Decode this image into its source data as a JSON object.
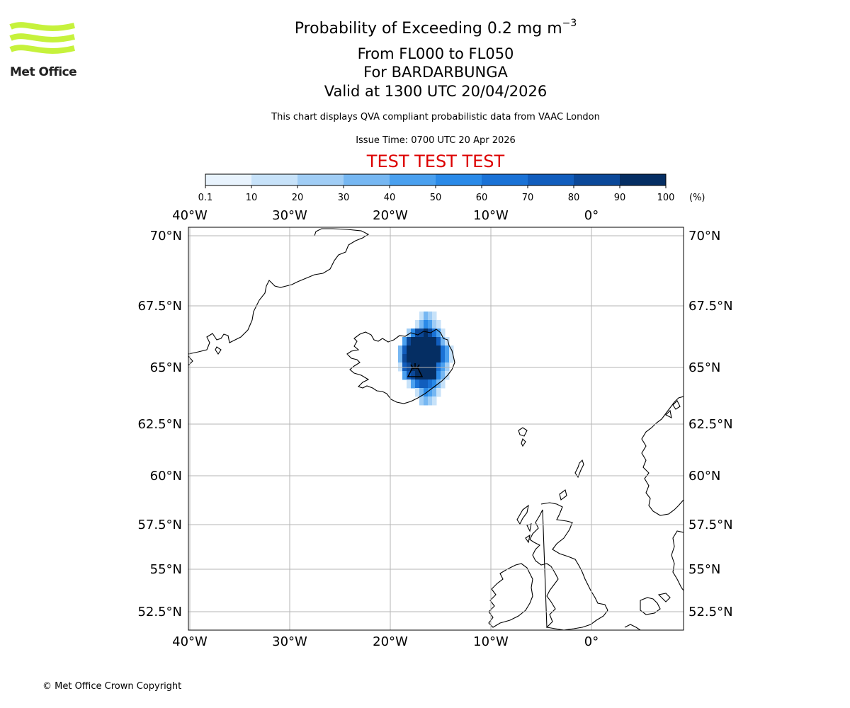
{
  "header": {
    "title_prefix": "Probability of Exceeding 0.2 mg m",
    "title_exponent": "−3",
    "flight_levels": "From FL000 to FL050",
    "volcano": "For BARDARBUNGA",
    "valid_time": "Valid at 1300 UTC 20/04/2026",
    "subtitle": "This chart displays QVA compliant probabilistic data from VAAC London",
    "issue_time": "Issue Time: 0700 UTC 20 Apr 2026",
    "test_banner": "TEST TEST TEST"
  },
  "logo": {
    "text": "Met Office",
    "color": "#c6f23c"
  },
  "colorbar": {
    "ticks": [
      "0.1",
      "10",
      "20",
      "30",
      "40",
      "50",
      "60",
      "70",
      "80",
      "90",
      "100"
    ],
    "unit": "(%)",
    "colors": [
      "#e8f3fd",
      "#c7e2f9",
      "#a0cdf5",
      "#76b7f2",
      "#4aa0ef",
      "#2a8ae8",
      "#1a72d6",
      "#115dbd",
      "#0b4899",
      "#052e63"
    ]
  },
  "map": {
    "lon_labels": [
      "40°W",
      "30°W",
      "20°W",
      "10°W",
      "0°"
    ],
    "lat_labels": [
      "70°N",
      "67.5°N",
      "65°N",
      "62.5°N",
      "60°N",
      "57.5°N",
      "55°N",
      "52.5°N"
    ],
    "probability_field": {
      "rows": [
        "00000013210000",
        "00000135421000",
        "00025889864100",
        "00489999997310",
        "03799999999641",
        "03899999999641",
        "01789999996420",
        "00478999995310",
        "00014677653100",
        "00000135431000",
        "00000023210000"
      ]
    },
    "volcano_symbol": "volcano-icon"
  },
  "footer": {
    "copyright": "© Met Office Crown Copyright"
  }
}
